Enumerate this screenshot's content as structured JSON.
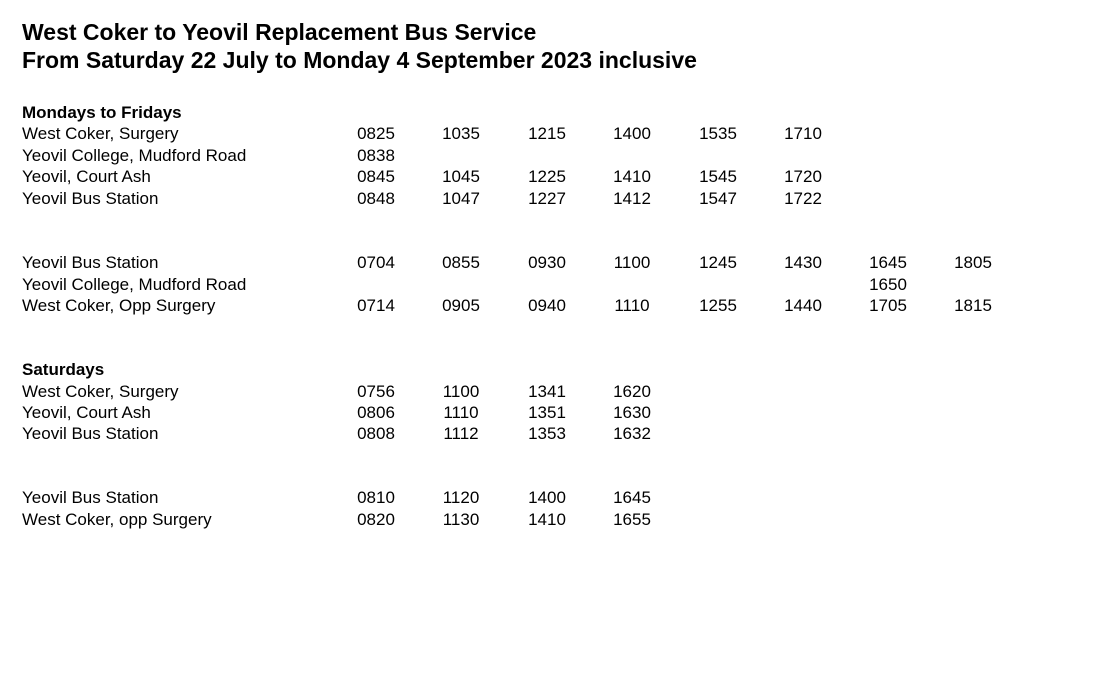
{
  "title_line1": "West Coker to Yeovil Replacement Bus Service",
  "title_line2": "From Saturday 22 July to Monday 4 September 2023 inclusive",
  "weekday": {
    "heading": "Mondays to Fridays",
    "to_yeovil": [
      {
        "stop": "West Coker, Surgery",
        "times": [
          "0825",
          "1035",
          "1215",
          "1400",
          "1535",
          "1710"
        ]
      },
      {
        "stop": "Yeovil College, Mudford Road",
        "times": [
          "0838",
          "",
          "",
          "",
          "",
          ""
        ]
      },
      {
        "stop": "Yeovil, Court Ash",
        "times": [
          "0845",
          "1045",
          "1225",
          "1410",
          "1545",
          "1720"
        ]
      },
      {
        "stop": "Yeovil Bus Station",
        "times": [
          "0848",
          "1047",
          "1227",
          "1412",
          "1547",
          "1722"
        ]
      }
    ],
    "to_west_coker": [
      {
        "stop": "Yeovil Bus Station",
        "times": [
          "0704",
          "0855",
          "0930",
          "1100",
          "1245",
          "1430",
          "1645",
          "1805"
        ]
      },
      {
        "stop": "Yeovil College, Mudford Road",
        "times": [
          "",
          "",
          "",
          "",
          "",
          "",
          "1650",
          ""
        ]
      },
      {
        "stop": "West Coker, Opp Surgery",
        "times": [
          "0714",
          "0905",
          "0940",
          "1110",
          "1255",
          "1440",
          "1705",
          "1815"
        ]
      }
    ]
  },
  "saturday": {
    "heading": "Saturdays",
    "to_yeovil": [
      {
        "stop": "West Coker, Surgery",
        "times": [
          "0756",
          "1100",
          "1341",
          "1620"
        ]
      },
      {
        "stop": "Yeovil, Court Ash",
        "times": [
          "0806",
          "1110",
          "1351",
          "1630"
        ]
      },
      {
        "stop": "Yeovil Bus Station",
        "times": [
          "0808",
          "1112",
          "1353",
          "1632"
        ]
      }
    ],
    "to_west_coker": [
      {
        "stop": "Yeovil Bus Station",
        "times": [
          "0810",
          "1120",
          "1400",
          "1645"
        ]
      },
      {
        "stop": "West Coker, opp Surgery",
        "times": [
          "0820",
          "1130",
          "1410",
          "1655"
        ]
      }
    ]
  }
}
